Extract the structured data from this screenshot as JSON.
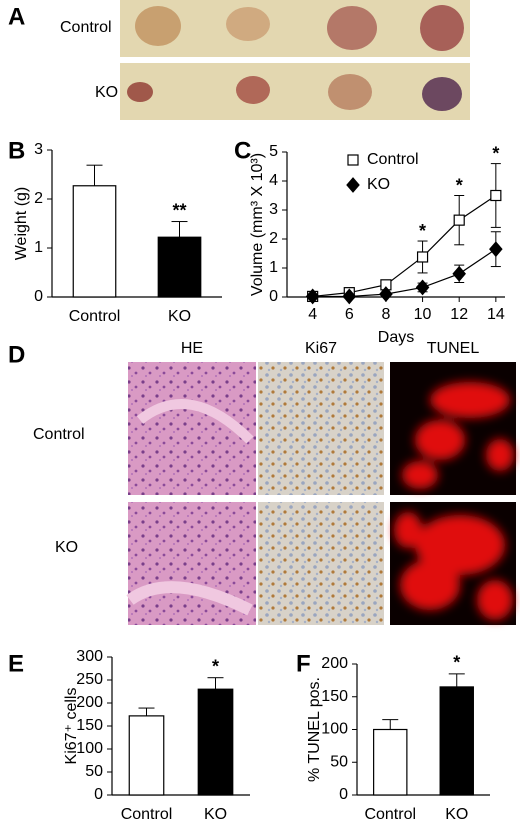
{
  "panel_labels": [
    "A",
    "B",
    "C",
    "D",
    "E",
    "F"
  ],
  "panel_a": {
    "rows": [
      "Control",
      "KO"
    ]
  },
  "panel_d": {
    "columns": [
      "HE",
      "Ki67",
      "TUNEL"
    ],
    "rows": [
      "Control",
      "KO"
    ]
  },
  "chart_data": [
    {
      "type": "bar",
      "ylabel": "Weight (g)",
      "categories": [
        "Control",
        "KO"
      ],
      "values": [
        2.27,
        1.22
      ],
      "errors": [
        0.42,
        0.32
      ],
      "colors": [
        "#ffffff",
        "#000000"
      ],
      "significance": [
        null,
        "**"
      ],
      "ylim": [
        0,
        3
      ],
      "yticks": [
        0,
        1,
        2,
        3
      ]
    },
    {
      "type": "line",
      "ylabel": "Volume (mm³ X 10³)",
      "xlabel": "Days",
      "x": [
        4,
        6,
        8,
        10,
        12,
        14
      ],
      "xlim": [
        2.6,
        14.5
      ],
      "xticks": [
        4,
        6,
        8,
        10,
        12,
        14
      ],
      "ylim": [
        0,
        5
      ],
      "yticks": [
        0,
        1,
        2,
        3,
        4,
        5
      ],
      "series": [
        {
          "name": "Control",
          "color": "#ffffff",
          "marker": "square",
          "values": [
            0.02,
            0.15,
            0.42,
            1.38,
            2.65,
            3.5
          ],
          "errors": [
            0.03,
            0.05,
            0.1,
            0.55,
            0.85,
            1.1
          ]
        },
        {
          "name": "KO",
          "color": "#000000",
          "marker": "diamond",
          "values": [
            0.02,
            0.02,
            0.1,
            0.33,
            0.8,
            1.65
          ],
          "errors": [
            0.02,
            0.02,
            0.05,
            0.15,
            0.3,
            0.6
          ]
        }
      ],
      "significance": [
        null,
        null,
        null,
        "*",
        "*",
        "*"
      ]
    },
    {
      "type": "bar",
      "ylabel": "Ki67⁺ cells",
      "categories": [
        "Control",
        "KO"
      ],
      "values": [
        172,
        230
      ],
      "errors": [
        17,
        25
      ],
      "colors": [
        "#ffffff",
        "#000000"
      ],
      "significance": [
        null,
        "*"
      ],
      "ylim": [
        0,
        300
      ],
      "yticks": [
        0,
        50,
        100,
        150,
        200,
        250,
        300
      ]
    },
    {
      "type": "bar",
      "ylabel": "% TUNEL pos.",
      "categories": [
        "Control",
        "KO"
      ],
      "values": [
        100,
        165
      ],
      "errors": [
        15,
        20
      ],
      "colors": [
        "#ffffff",
        "#000000"
      ],
      "significance": [
        null,
        "*"
      ],
      "ylim": [
        0,
        200
      ],
      "yticks": [
        0,
        50,
        100,
        150,
        200
      ]
    }
  ]
}
